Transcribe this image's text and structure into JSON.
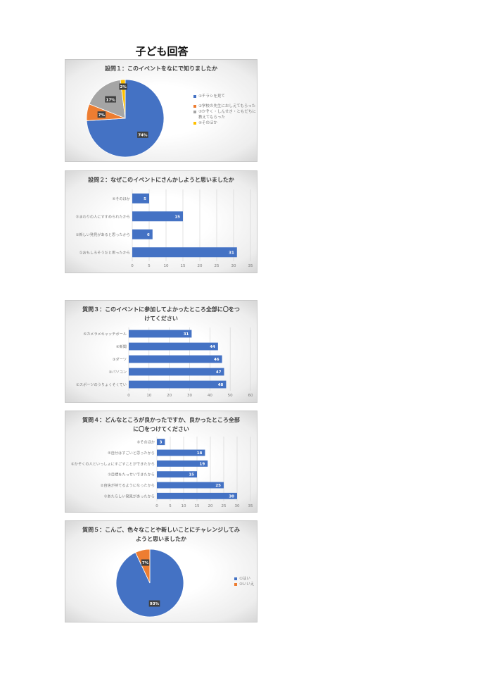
{
  "page_title": "子ども回答",
  "colors": {
    "blue": "#4472c4",
    "orange": "#ed7d31",
    "gray": "#a5a5a5",
    "yellow": "#ffc000"
  },
  "chart_data": [
    {
      "id": "q1",
      "type": "pie",
      "title_lines": [
        "設問１：このイベントをなにで知りましたか"
      ],
      "labels": [
        "①チラシを見て",
        "②学校の先生におしえてもらった",
        "③かぞく・しんせき・ともだちに教えてもらった",
        "④そのほか"
      ],
      "values": [
        74,
        7,
        17,
        2
      ],
      "data_labels": [
        "74%",
        "7%",
        "17%",
        "2%"
      ],
      "colors": [
        "#4472c4",
        "#ed7d31",
        "#a5a5a5",
        "#ffc000"
      ],
      "legend_position": "right"
    },
    {
      "id": "q2",
      "type": "bar",
      "orientation": "horizontal",
      "title_lines": [
        "設問２：なぜこのイベントにさんかしようと思いましたか"
      ],
      "categories": [
        "④そのほか",
        "③まわりの人にすすめられたから",
        "②新しい発見があると思ったから",
        "①おもしろそうだと思ったから"
      ],
      "values": [
        5,
        15,
        6,
        31
      ],
      "xlim": [
        0,
        35
      ],
      "xticks": [
        0,
        5,
        10,
        15,
        20,
        25,
        30,
        35
      ],
      "grid": "vertical"
    },
    {
      "id": "q3",
      "type": "bar",
      "orientation": "horizontal",
      "title_lines": [
        "質問３：このイベントに参加してよかったところ全部に〇をつ",
        "けてください"
      ],
      "categories": [
        "⑤カメラメキャッチボール",
        "④新聞",
        "③ダーツ",
        "②パソコン",
        "①スポーツのうりょくそくてい"
      ],
      "values": [
        31,
        44,
        46,
        47,
        48
      ],
      "xlim": [
        0,
        60
      ],
      "xticks": [
        0,
        10,
        20,
        30,
        40,
        50,
        60
      ],
      "grid": "vertical"
    },
    {
      "id": "q4",
      "type": "bar",
      "orientation": "horizontal",
      "title_lines": [
        "質問４：どんなところが良かったですか、良かったところ全部",
        "に〇をつけてください"
      ],
      "categories": [
        "⑥そのほか",
        "⑤自分はすごいと思ったから",
        "④かぞくの人といっしょにすごすことができたから",
        "③目標をたっせいできたから",
        "②自信が持てるようになったから",
        "①あたらしい発見があったから"
      ],
      "values": [
        3,
        18,
        19,
        15,
        25,
        30
      ],
      "xlim": [
        0,
        35
      ],
      "xticks": [
        0,
        5,
        10,
        15,
        20,
        25,
        30,
        35
      ],
      "grid": "vertical"
    },
    {
      "id": "q5",
      "type": "pie",
      "title_lines": [
        "質問５：こんご、色々なことや新しいことにチャレンジしてみ",
        "ようと思いましたか"
      ],
      "labels": [
        "①はい",
        "②いいえ"
      ],
      "values": [
        93,
        7
      ],
      "data_labels": [
        "93%",
        "7%"
      ],
      "colors": [
        "#4472c4",
        "#ed7d31"
      ],
      "legend_position": "right"
    }
  ]
}
